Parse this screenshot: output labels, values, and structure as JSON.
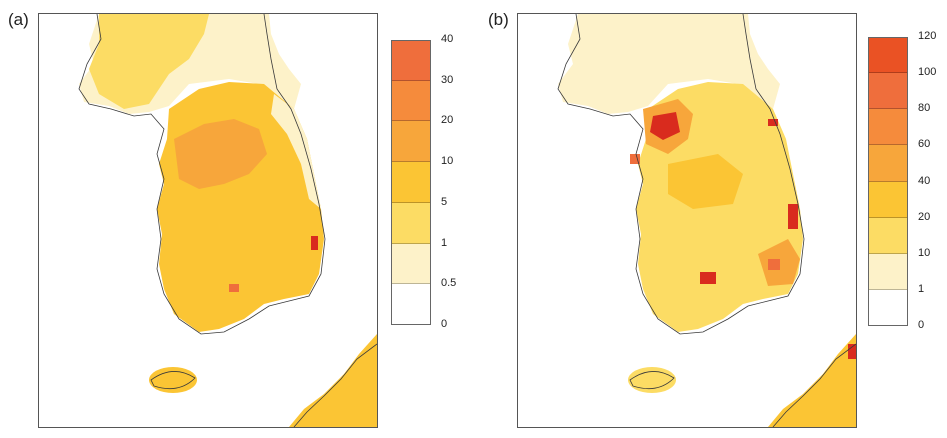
{
  "panels": [
    {
      "label": "(a)",
      "colorbar": {
        "ticks": [
          "40",
          "30",
          "20",
          "10",
          "5",
          "1",
          "0.5",
          "0"
        ],
        "colors": [
          "#ef6e3c",
          "#f58b3c",
          "#f7a63b",
          "#fbc534",
          "#fcdc64",
          "#fdf2c9",
          "#ffffff"
        ]
      }
    },
    {
      "label": "(b)",
      "colorbar": {
        "ticks": [
          "120",
          "100",
          "80",
          "60",
          "40",
          "20",
          "10",
          "1",
          "0"
        ],
        "colors": [
          "#ea5224",
          "#ef6e3c",
          "#f58b3c",
          "#f7a63b",
          "#fbc534",
          "#fcdc64",
          "#fdf2c9",
          "#ffffff"
        ]
      }
    }
  ],
  "map_colors": {
    "coast": "#3a3a3a",
    "low": "#fdf2c9",
    "mid": "#fcdc64",
    "main": "#fbc534",
    "mid_high": "#f7a63b",
    "high": "#ef6e3c",
    "hot": "#d92b1e"
  }
}
